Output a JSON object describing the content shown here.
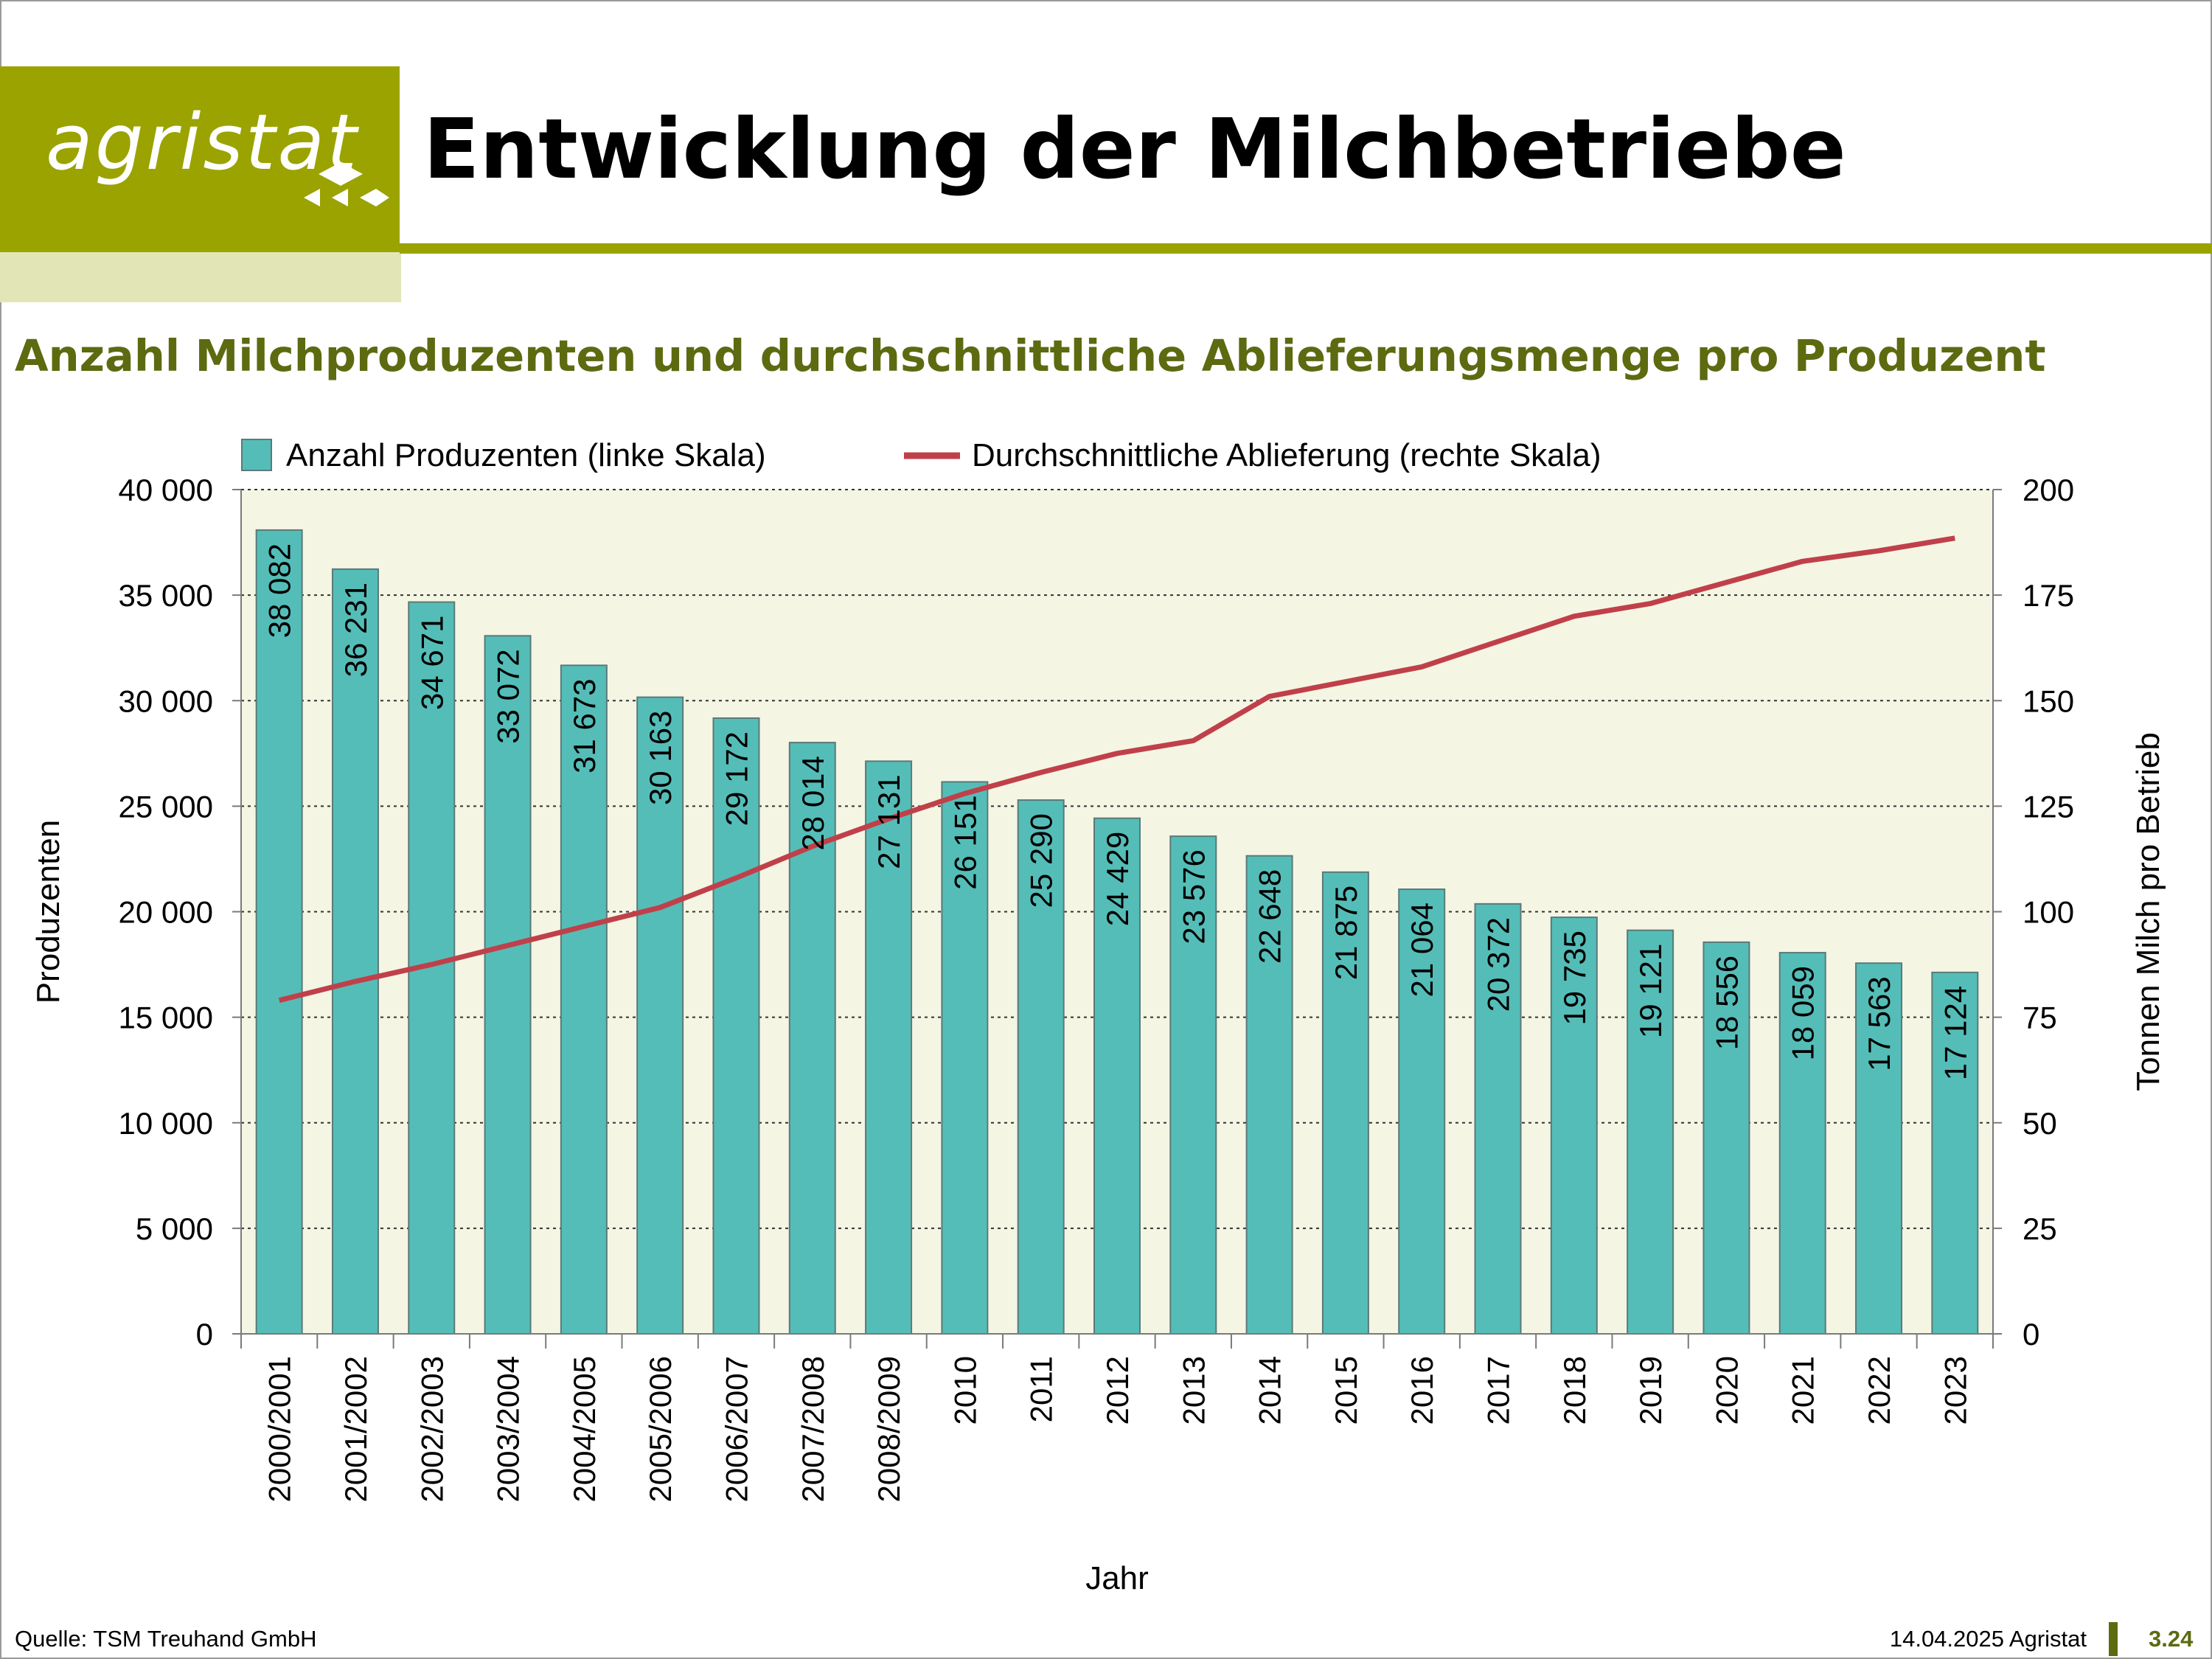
{
  "header": {
    "logo_text": "agristat",
    "title": "Entwicklung der Milchbetriebe"
  },
  "subtitle": "Anzahl Milchproduzenten und durchschnittliche Ablieferungsmenge pro Produzent",
  "colors": {
    "brand": "#9aa300",
    "brand_light": "#e2e6b6",
    "subtitle": "#5d6a10",
    "bar": "#55bdb8",
    "line": "#c0404a",
    "plot_bg": "#f5f5e4"
  },
  "icons": [
    "agristat-logo-mark"
  ],
  "chart_data": {
    "type": "bar",
    "categories": [
      "2000/2001",
      "2001/2002",
      "2002/2003",
      "2003/2004",
      "2004/2005",
      "2005/2006",
      "2006/2007",
      "2007/2008",
      "2008/2009",
      "2010",
      "2011",
      "2012",
      "2013",
      "2014",
      "2015",
      "2016",
      "2017",
      "2018",
      "2019",
      "2020",
      "2021",
      "2022",
      "2023"
    ],
    "series": [
      {
        "name": "Anzahl Produzenten (linke Skala)",
        "type": "bar",
        "axis": "left",
        "values": [
          38082,
          36231,
          34671,
          33072,
          31673,
          30163,
          29172,
          28014,
          27131,
          26151,
          25290,
          24429,
          23576,
          22648,
          21875,
          21064,
          20372,
          19735,
          19121,
          18556,
          18059,
          17563,
          17124
        ],
        "labels": [
          "38 082",
          "36 231",
          "34 671",
          "33 072",
          "31 673",
          "30 163",
          "29 172",
          "28 014",
          "27 131",
          "26 151",
          "25 290",
          "24 429",
          "23 576",
          "22 648",
          "21 875",
          "21 064",
          "20 372",
          "19 735",
          "19 121",
          "18 556",
          "18 059",
          "17 563",
          "17 124"
        ]
      },
      {
        "name": "Durchschnittliche Ablieferung (rechte Skala)",
        "type": "line",
        "axis": "right",
        "values": [
          79,
          83.5,
          87.5,
          92,
          96.5,
          101,
          108,
          115.5,
          122,
          128,
          133,
          137.5,
          140.5,
          151,
          154.5,
          158,
          164,
          170,
          173,
          178,
          183,
          185.5,
          188.5
        ]
      }
    ],
    "ylabel_left": "Produzenten",
    "ylabel_right": "Tonnen Milch pro Betrieb",
    "xlabel": "Jahr",
    "ylim_left": [
      0,
      40000
    ],
    "ylim_right": [
      0,
      200
    ],
    "yticks_left": [
      0,
      5000,
      10000,
      15000,
      20000,
      25000,
      30000,
      35000,
      40000
    ],
    "yticks_left_labels": [
      "0",
      "5 000",
      "10 000",
      "15 000",
      "20 000",
      "25 000",
      "30 000",
      "35 000",
      "40 000"
    ],
    "yticks_right": [
      0,
      25,
      50,
      75,
      100,
      125,
      150,
      175,
      200
    ],
    "yticks_right_labels": [
      "0",
      "25",
      "50",
      "75",
      "100",
      "125",
      "150",
      "175",
      "200"
    ],
    "grid": "horizontal dotted",
    "legend_position": "top"
  },
  "footer": {
    "source": "Quelle: TSM Treuhand GmbH",
    "date": "14.04.2025 Agristat",
    "page": "3.24"
  }
}
